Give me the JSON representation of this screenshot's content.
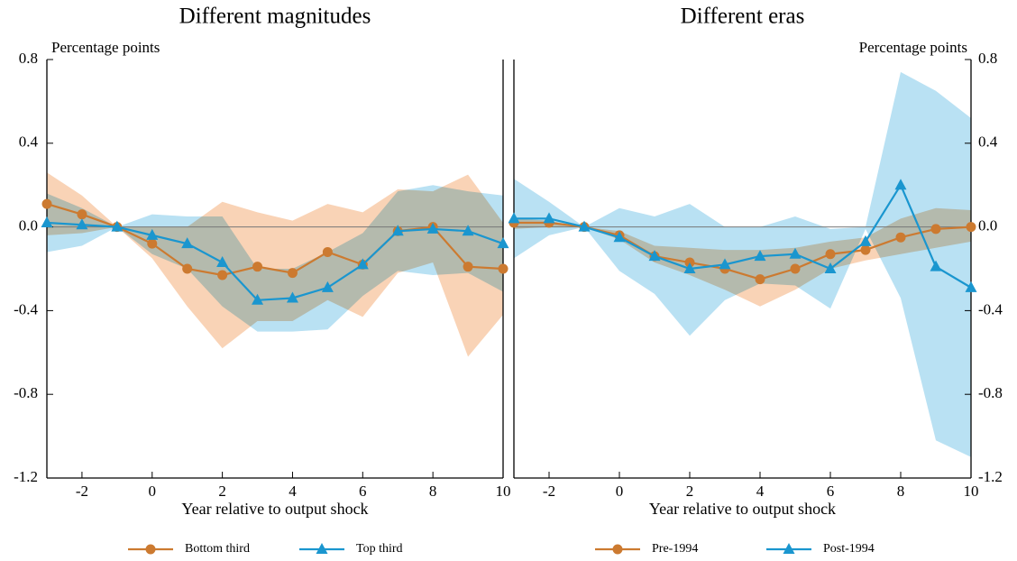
{
  "chart_data": [
    {
      "type": "line",
      "title": "Different magnitudes",
      "y_label": "Percentage points",
      "x_label": "Year relative to output shock",
      "yaxis_side": "left",
      "x": [
        -3,
        -2,
        -1,
        0,
        1,
        2,
        3,
        4,
        5,
        6,
        7,
        8,
        9,
        10
      ],
      "xlim": [
        -3,
        10
      ],
      "xticks": [
        -2,
        0,
        2,
        4,
        6,
        8,
        10
      ],
      "ylim": [
        -1.2,
        0.8
      ],
      "yticks": [
        -1.2,
        -0.8,
        -0.4,
        {
          "value": 0,
          "label": "0.0"
        },
        0.4,
        0.8
      ],
      "series": [
        {
          "name": "Bottom third",
          "color": "#cc7a30",
          "band_color": "#f9d3b6",
          "marker": "circle",
          "values": [
            0.11,
            0.06,
            0.0,
            -0.08,
            -0.2,
            -0.23,
            -0.19,
            -0.22,
            -0.12,
            -0.18,
            -0.02,
            0.0,
            -0.19,
            -0.2
          ],
          "upper": [
            0.26,
            0.15,
            0.0,
            0.0,
            0.0,
            0.12,
            0.07,
            0.03,
            0.11,
            0.07,
            0.18,
            0.17,
            0.25,
            0.02
          ],
          "lower": [
            -0.04,
            -0.03,
            0.0,
            -0.15,
            -0.38,
            -0.58,
            -0.45,
            -0.45,
            -0.35,
            -0.43,
            -0.22,
            -0.17,
            -0.62,
            -0.42
          ]
        },
        {
          "name": "Top third",
          "color": "#1a96cf",
          "band_color": "#b9e1f3",
          "marker": "triangle",
          "values": [
            0.02,
            0.01,
            0.0,
            -0.04,
            -0.08,
            -0.17,
            -0.35,
            -0.34,
            -0.29,
            -0.18,
            -0.02,
            -0.01,
            -0.02,
            -0.08
          ],
          "upper": [
            0.16,
            0.09,
            0.0,
            0.06,
            0.05,
            0.05,
            -0.2,
            -0.2,
            -0.12,
            -0.03,
            0.17,
            0.2,
            0.17,
            0.15
          ],
          "lower": [
            -0.12,
            -0.09,
            0.0,
            -0.13,
            -0.2,
            -0.38,
            -0.5,
            -0.5,
            -0.49,
            -0.33,
            -0.21,
            -0.23,
            -0.22,
            -0.31
          ]
        }
      ]
    },
    {
      "type": "line",
      "title": "Different eras",
      "y_label": "Percentage points",
      "x_label": "Year relative to output shock",
      "yaxis_side": "right",
      "x": [
        -3,
        -2,
        -1,
        0,
        1,
        2,
        3,
        4,
        5,
        6,
        7,
        8,
        9,
        10
      ],
      "xlim": [
        -3,
        10
      ],
      "xticks": [
        -2,
        0,
        2,
        4,
        6,
        8,
        10
      ],
      "ylim": [
        -1.2,
        0.8
      ],
      "yticks": [
        -1.2,
        -0.8,
        -0.4,
        {
          "value": 0,
          "label": "0.0"
        },
        0.4,
        0.8
      ],
      "series": [
        {
          "name": "Pre-1994",
          "color": "#cc7a30",
          "band_color": "#f9d3b6",
          "marker": "circle",
          "values": [
            0.02,
            0.02,
            0.0,
            -0.04,
            -0.14,
            -0.17,
            -0.2,
            -0.25,
            -0.2,
            -0.13,
            -0.11,
            -0.05,
            -0.01,
            0.0
          ],
          "upper": [
            0.04,
            0.03,
            0.0,
            -0.02,
            -0.09,
            -0.1,
            -0.11,
            -0.11,
            -0.1,
            -0.07,
            -0.05,
            0.04,
            0.09,
            0.08
          ],
          "lower": [
            -0.01,
            0.0,
            0.0,
            -0.06,
            -0.17,
            -0.23,
            -0.3,
            -0.38,
            -0.3,
            -0.2,
            -0.16,
            -0.13,
            -0.1,
            -0.07
          ]
        },
        {
          "name": "Post-1994",
          "color": "#1a96cf",
          "band_color": "#b9e1f3",
          "marker": "triangle",
          "values": [
            0.04,
            0.04,
            0.0,
            -0.05,
            -0.14,
            -0.2,
            -0.18,
            -0.14,
            -0.13,
            -0.2,
            -0.07,
            0.2,
            -0.19,
            -0.29
          ],
          "upper": [
            0.23,
            0.12,
            0.0,
            0.09,
            0.05,
            0.11,
            0.0,
            0.0,
            0.05,
            -0.01,
            0.0,
            0.74,
            0.65,
            0.52
          ],
          "lower": [
            -0.15,
            -0.04,
            0.0,
            -0.21,
            -0.32,
            -0.52,
            -0.35,
            -0.27,
            -0.28,
            -0.39,
            -0.01,
            -0.34,
            -1.02,
            -1.1
          ]
        }
      ]
    }
  ]
}
